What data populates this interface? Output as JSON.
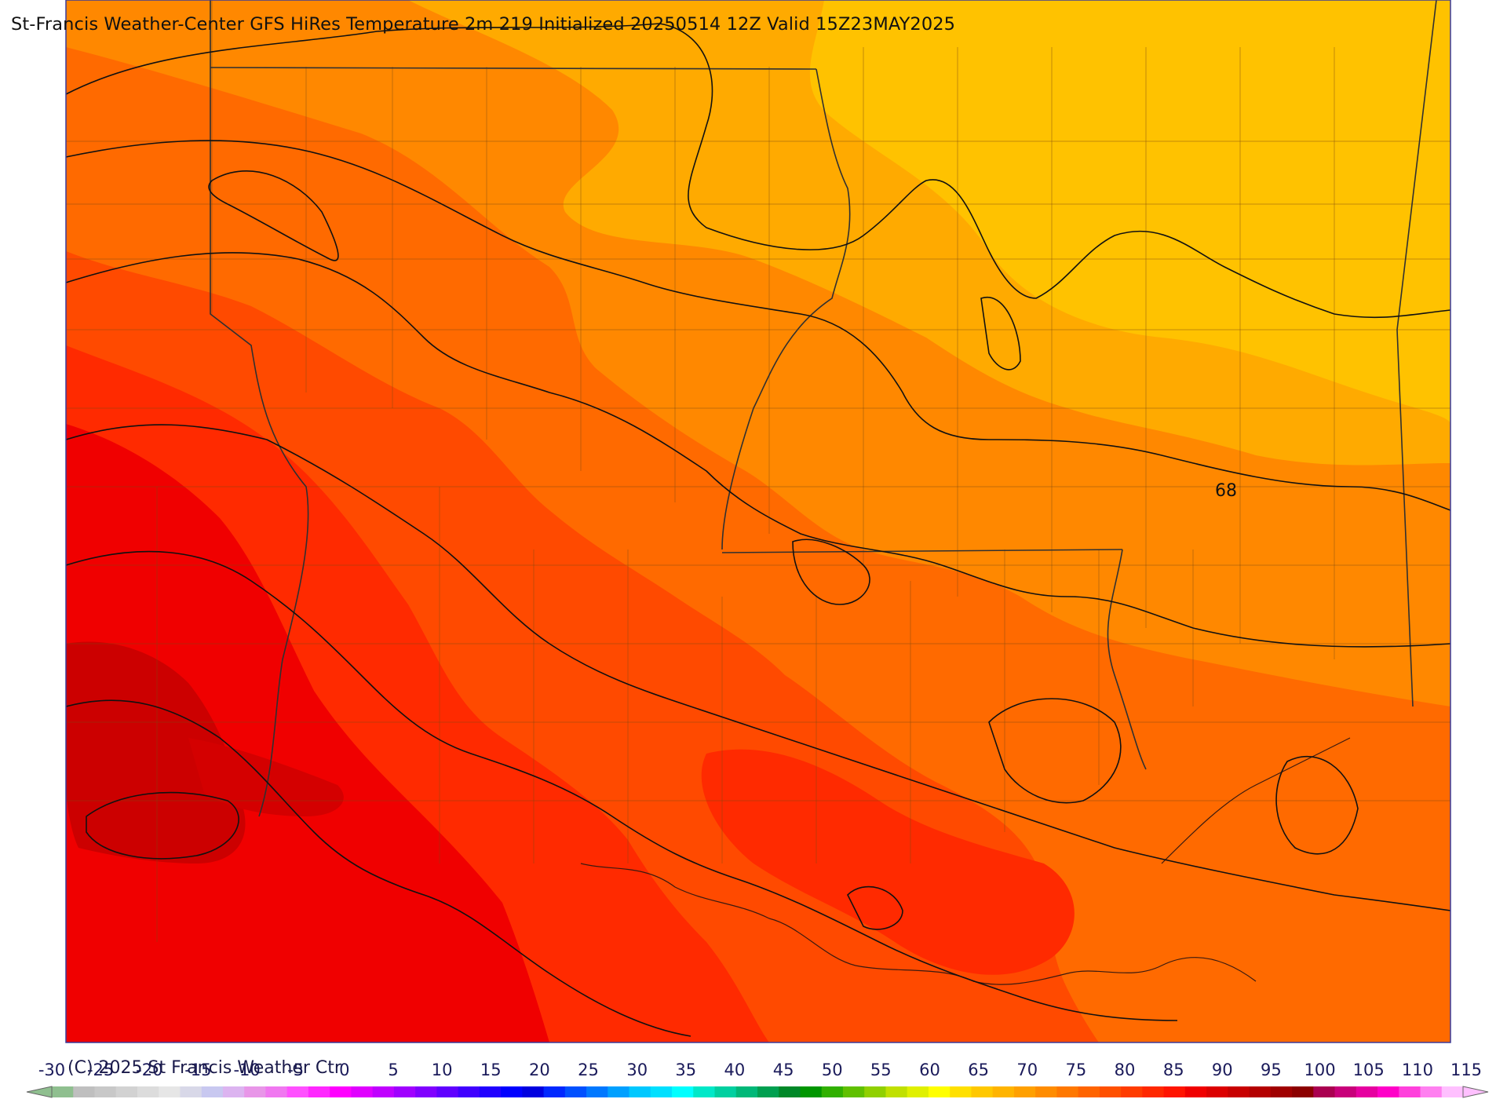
{
  "title": "St-Francis Weather-Center GFS HiRes Temperature 2m  219 Initialized 20250514 12Z Valid 15Z23MAY2025",
  "copyright": "(C) 2025 St Francis Weather Ctr",
  "contour_labels": [
    {
      "text": "68"
    }
  ],
  "colorbar": {
    "ticks": [
      "-30",
      "-25",
      "-20",
      "-15",
      "-10",
      "-5",
      "0",
      "5",
      "10",
      "15",
      "20",
      "25",
      "30",
      "35",
      "40",
      "45",
      "50",
      "55",
      "60",
      "65",
      "70",
      "75",
      "80",
      "85",
      "90",
      "95",
      "100",
      "105",
      "110",
      "115"
    ],
    "colors": [
      "#8fbf8f",
      "#bfbfbf",
      "#c8c8c8",
      "#d2d2d2",
      "#dcdcdc",
      "#e6e6e6",
      "#d8d8e8",
      "#c8c8f0",
      "#dcb4f0",
      "#e896e8",
      "#f078f0",
      "#ff50ff",
      "#ff28ff",
      "#ff00ff",
      "#e000ff",
      "#c000ff",
      "#a000ff",
      "#8000ff",
      "#6000ff",
      "#4000ff",
      "#2000ff",
      "#0000ff",
      "#0000e0",
      "#0028ff",
      "#0050ff",
      "#0078ff",
      "#00a0ff",
      "#00c8ff",
      "#00e0ff",
      "#00ffff",
      "#00e8c8",
      "#00d0a0",
      "#00b878",
      "#00a050",
      "#008828",
      "#009600",
      "#30b000",
      "#60c000",
      "#90d000",
      "#c0e000",
      "#e0f000",
      "#ffff00",
      "#ffe000",
      "#ffc800",
      "#ffb400",
      "#ffa000",
      "#ff8c00",
      "#ff7800",
      "#ff6400",
      "#ff5000",
      "#ff3c00",
      "#ff2800",
      "#ff1400",
      "#f00000",
      "#dc0000",
      "#c80000",
      "#b40000",
      "#a00000",
      "#8c0000",
      "#aa0050",
      "#c8007a",
      "#e600a0",
      "#ff00c8",
      "#ff40dc",
      "#ff80f0",
      "#ffc0ff"
    ]
  },
  "colors": {
    "warm_1": "#ffc200",
    "warm_2": "#ffaa00",
    "warm_3": "#ff8800",
    "warm_4": "#ff6a00",
    "warm_5": "#ff4a00",
    "warm_6": "#ff2a00",
    "warm_7": "#f00000",
    "warm_8": "#cc0000"
  }
}
